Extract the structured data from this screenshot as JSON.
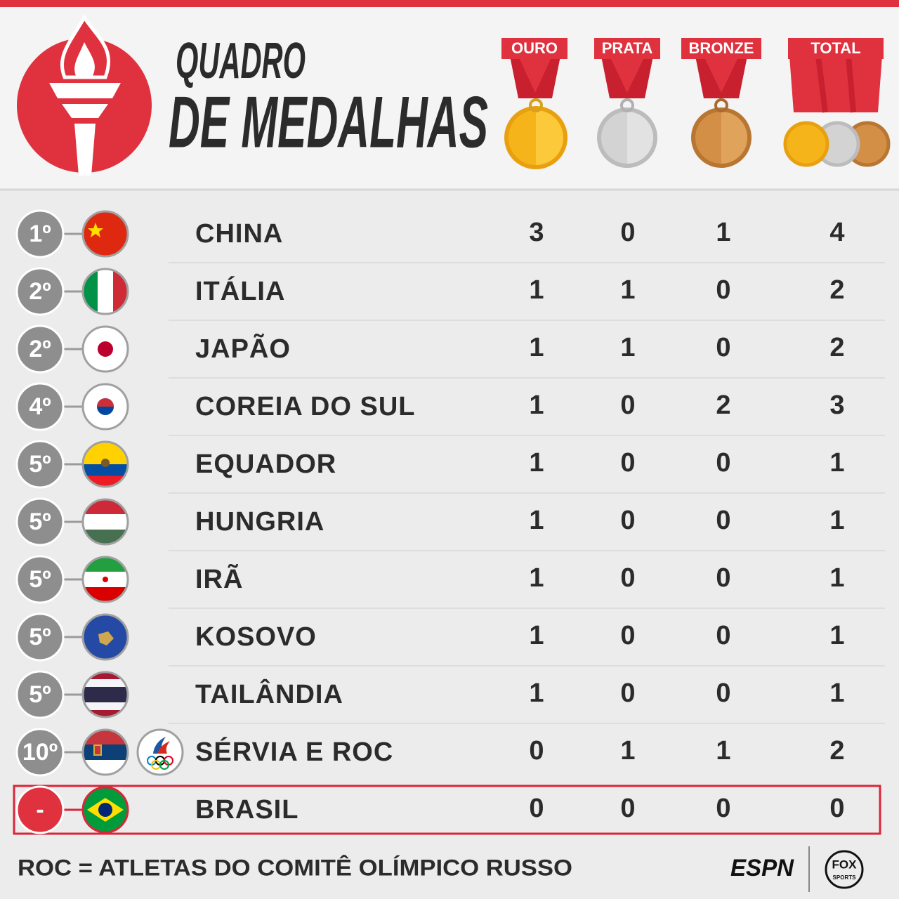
{
  "header": {
    "title_line1": "QUADRO",
    "title_line2": "DE MEDALHAS",
    "columns": [
      "OURO",
      "PRATA",
      "BRONZE",
      "TOTAL"
    ]
  },
  "table": {
    "rows": [
      {
        "rank": "1º",
        "country": "CHINA",
        "gold": 3,
        "silver": 0,
        "bronze": 1,
        "total": 4
      },
      {
        "rank": "2º",
        "country": "ITÁLIA",
        "gold": 1,
        "silver": 1,
        "bronze": 0,
        "total": 2
      },
      {
        "rank": "2º",
        "country": "JAPÃO",
        "gold": 1,
        "silver": 1,
        "bronze": 0,
        "total": 2
      },
      {
        "rank": "4º",
        "country": "COREIA DO SUL",
        "gold": 1,
        "silver": 0,
        "bronze": 2,
        "total": 3
      },
      {
        "rank": "5º",
        "country": "EQUADOR",
        "gold": 1,
        "silver": 0,
        "bronze": 0,
        "total": 1
      },
      {
        "rank": "5º",
        "country": "HUNGRIA",
        "gold": 1,
        "silver": 0,
        "bronze": 0,
        "total": 1
      },
      {
        "rank": "5º",
        "country": "IRÃ",
        "gold": 1,
        "silver": 0,
        "bronze": 0,
        "total": 1
      },
      {
        "rank": "5º",
        "country": "KOSOVO",
        "gold": 1,
        "silver": 0,
        "bronze": 0,
        "total": 1
      },
      {
        "rank": "5º",
        "country": "TAILÂNDIA",
        "gold": 1,
        "silver": 0,
        "bronze": 0,
        "total": 1
      },
      {
        "rank": "10º",
        "country": "SÉRVIA E ROC",
        "gold": 0,
        "silver": 1,
        "bronze": 1,
        "total": 2
      },
      {
        "rank": "-",
        "country": "BRASIL",
        "gold": 0,
        "silver": 0,
        "bronze": 0,
        "total": 0
      }
    ]
  },
  "footer": {
    "note": "ROC = ATLETAS DO COMITÊ OLÍMPICO RUSSO",
    "espn": "ESPN",
    "fox": "FOX",
    "sports": "SPORTS"
  }
}
